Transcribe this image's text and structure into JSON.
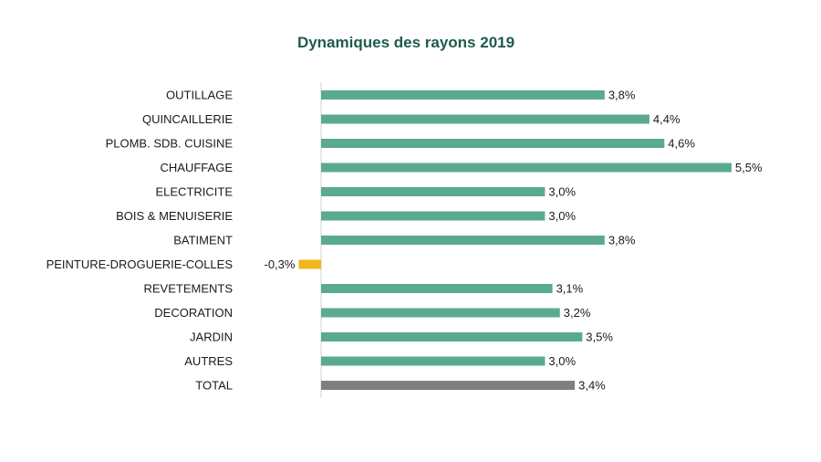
{
  "chart_data": {
    "type": "bar",
    "orientation": "horizontal",
    "title": "Dynamiques des rayons 2019",
    "categories": [
      "OUTILLAGE",
      "QUINCAILLERIE",
      "PLOMB. SDB. CUISINE",
      "CHAUFFAGE",
      "ELECTRICITE",
      "BOIS & MENUISERIE",
      "BATIMENT",
      "PEINTURE-DROGUERIE-COLLES",
      "REVETEMENTS",
      "DECORATION",
      "JARDIN",
      "AUTRES",
      "TOTAL"
    ],
    "values": [
      3.8,
      4.4,
      4.6,
      5.5,
      3.0,
      3.0,
      3.8,
      -0.3,
      3.1,
      3.2,
      3.5,
      3.0,
      3.4
    ],
    "value_labels": [
      "3,8%",
      "4,4%",
      "4,6%",
      "5,5%",
      "3,0%",
      "3,0%",
      "3,8%",
      "-0,3%",
      "3,1%",
      "3,2%",
      "3,5%",
      "3,0%",
      "3,4%"
    ],
    "xlabel": "",
    "ylabel": "",
    "xlim": [
      -0.4,
      5.5
    ],
    "grid": false,
    "legend": "none",
    "colors": {
      "positive": "#5aaa92",
      "negative": "#f2b51c",
      "total": "#7f7f7f",
      "axis": "#d0d0d0",
      "title": "#1f5a4e"
    }
  }
}
